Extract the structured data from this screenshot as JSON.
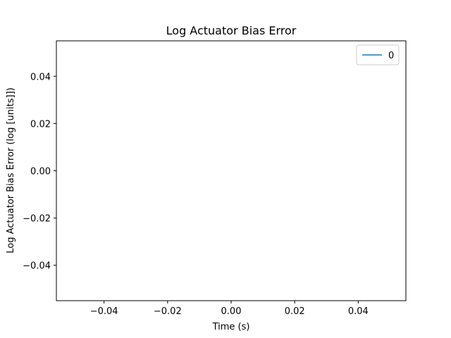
{
  "chart_data": {
    "type": "line",
    "title": "Log Actuator Bias Error",
    "xlabel": "Time (s)",
    "ylabel": "Log Actuator Bias Error (log [units]])",
    "xlim": [
      -0.055,
      0.055
    ],
    "ylim": [
      -0.055,
      0.055
    ],
    "xticks": [
      -0.04,
      -0.02,
      0.0,
      0.02,
      0.04
    ],
    "xtick_labels": [
      "−0.04",
      "−0.02",
      "0.00",
      "0.02",
      "0.04"
    ],
    "yticks": [
      -0.04,
      -0.02,
      0.0,
      0.02,
      0.04
    ],
    "ytick_labels": [
      "−0.04",
      "−0.02",
      "0.00",
      "0.02",
      "0.04"
    ],
    "grid": false,
    "legend_position": "upper right",
    "series": [
      {
        "name": "0",
        "color": "#1f77b4",
        "x": [],
        "y": []
      }
    ]
  }
}
